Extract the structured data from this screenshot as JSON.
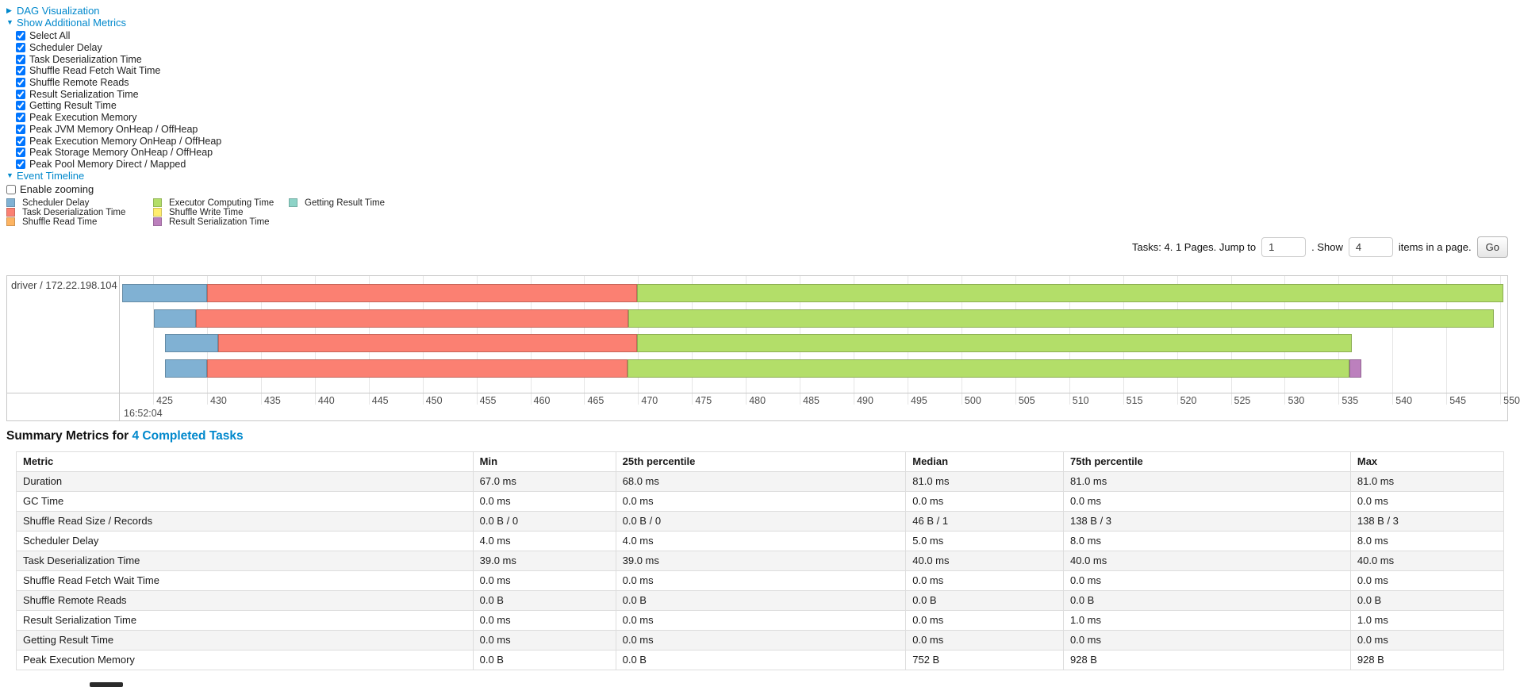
{
  "toggles": {
    "dag": "DAG Visualization",
    "show_additional_metrics": "Show Additional Metrics",
    "event_timeline": "Event Timeline",
    "enable_zooming": "Enable zooming"
  },
  "metric_checkboxes": [
    "Select All",
    "Scheduler Delay",
    "Task Deserialization Time",
    "Shuffle Read Fetch Wait Time",
    "Shuffle Remote Reads",
    "Result Serialization Time",
    "Getting Result Time",
    "Peak Execution Memory",
    "Peak JVM Memory OnHeap / OffHeap",
    "Peak Execution Memory OnHeap / OffHeap",
    "Peak Storage Memory OnHeap / OffHeap",
    "Peak Pool Memory Direct / Mapped"
  ],
  "legend": [
    {
      "label": "Scheduler Delay",
      "color": "#80B1D3"
    },
    {
      "label": "Task Deserialization Time",
      "color": "#FB8072"
    },
    {
      "label": "Shuffle Read Time",
      "color": "#FDB462"
    },
    {
      "label": "Executor Computing Time",
      "color": "#B3DE69"
    },
    {
      "label": "Shuffle Write Time",
      "color": "#FFED6F"
    },
    {
      "label": "Result Serialization Time",
      "color": "#BC80BD"
    },
    {
      "label": "Getting Result Time",
      "color": "#8DD3C7"
    }
  ],
  "pagination": {
    "tasks_text": "Tasks: 4. 1 Pages. Jump to",
    "jump_value": "1",
    "show_text": ". Show",
    "show_value": "4",
    "items_text": "items in a page.",
    "go_label": "Go"
  },
  "chart_data": {
    "type": "timeline",
    "title": "Event Timeline",
    "group_label": "driver / 172.22.198.104",
    "x_base_label": "16:52:04",
    "x_domain": [
      421.9,
      550.8
    ],
    "x_ticks": [
      425,
      430,
      435,
      440,
      445,
      450,
      455,
      460,
      465,
      470,
      475,
      480,
      485,
      490,
      495,
      500,
      505,
      510,
      515,
      520,
      525,
      530,
      535,
      540,
      545,
      550
    ],
    "series_colors": {
      "Scheduler Delay": "#80B1D3",
      "Task Deserialization Time": "#FB8072",
      "Shuffle Read Time": "#FDB462",
      "Executor Computing Time": "#B3DE69",
      "Shuffle Write Time": "#FFED6F",
      "Result Serialization Time": "#BC80BD",
      "Getting Result Time": "#8DD3C7"
    },
    "tasks": [
      {
        "segments": [
          {
            "name": "Scheduler Delay",
            "start": 422.1,
            "end": 430.0
          },
          {
            "name": "Task Deserialization Time",
            "start": 430.0,
            "end": 469.9
          },
          {
            "name": "Executor Computing Time",
            "start": 469.9,
            "end": 550.3
          }
        ]
      },
      {
        "segments": [
          {
            "name": "Scheduler Delay",
            "start": 425.1,
            "end": 429.0
          },
          {
            "name": "Task Deserialization Time",
            "start": 429.0,
            "end": 469.1
          },
          {
            "name": "Executor Computing Time",
            "start": 469.1,
            "end": 549.4
          }
        ]
      },
      {
        "segments": [
          {
            "name": "Scheduler Delay",
            "start": 426.1,
            "end": 431.0
          },
          {
            "name": "Task Deserialization Time",
            "start": 431.0,
            "end": 469.9
          },
          {
            "name": "Executor Computing Time",
            "start": 469.9,
            "end": 536.2
          }
        ]
      },
      {
        "segments": [
          {
            "name": "Scheduler Delay",
            "start": 426.1,
            "end": 430.0
          },
          {
            "name": "Task Deserialization Time",
            "start": 430.0,
            "end": 469.0
          },
          {
            "name": "Executor Computing Time",
            "start": 469.0,
            "end": 536.0
          },
          {
            "name": "Result Serialization Time",
            "start": 536.0,
            "end": 537.1
          }
        ]
      }
    ]
  },
  "summary": {
    "heading_prefix": "Summary Metrics for ",
    "heading_link": "4 Completed Tasks",
    "headers": [
      "Metric",
      "Min",
      "25th percentile",
      "Median",
      "75th percentile",
      "Max"
    ],
    "rows": [
      [
        "Duration",
        "67.0 ms",
        "68.0 ms",
        "81.0 ms",
        "81.0 ms",
        "81.0 ms"
      ],
      [
        "GC Time",
        "0.0 ms",
        "0.0 ms",
        "0.0 ms",
        "0.0 ms",
        "0.0 ms"
      ],
      [
        "Shuffle Read Size / Records",
        "0.0 B / 0",
        "0.0 B / 0",
        "46 B / 1",
        "138 B / 3",
        "138 B / 3"
      ],
      [
        "Scheduler Delay",
        "4.0 ms",
        "4.0 ms",
        "5.0 ms",
        "8.0 ms",
        "8.0 ms"
      ],
      [
        "Task Deserialization Time",
        "39.0 ms",
        "39.0 ms",
        "40.0 ms",
        "40.0 ms",
        "40.0 ms"
      ],
      [
        "Shuffle Read Fetch Wait Time",
        "0.0 ms",
        "0.0 ms",
        "0.0 ms",
        "0.0 ms",
        "0.0 ms"
      ],
      [
        "Shuffle Remote Reads",
        "0.0 B",
        "0.0 B",
        "0.0 B",
        "0.0 B",
        "0.0 B"
      ],
      [
        "Result Serialization Time",
        "0.0 ms",
        "0.0 ms",
        "0.0 ms",
        "1.0 ms",
        "1.0 ms"
      ],
      [
        "Getting Result Time",
        "0.0 ms",
        "0.0 ms",
        "0.0 ms",
        "0.0 ms",
        "0.0 ms"
      ],
      [
        "Peak Execution Memory",
        "0.0 B",
        "0.0 B",
        "752 B",
        "928 B",
        "928 B"
      ]
    ]
  }
}
